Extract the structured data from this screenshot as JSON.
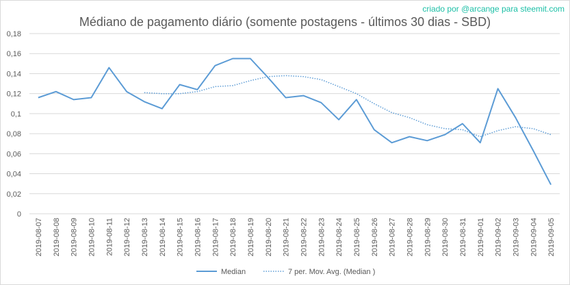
{
  "chart_data": {
    "type": "line",
    "title": "Médiano de pagamento diário (somente postagens - últimos 30 dias - SBD)",
    "credit": "criado por @arcange para steemit.com",
    "xlabel": "",
    "ylabel": "",
    "ylim": [
      0,
      0.18
    ],
    "yticks": [
      "0",
      "0,02",
      "0,04",
      "0,06",
      "0,08",
      "0,1",
      "0,12",
      "0,14",
      "0,16",
      "0,18"
    ],
    "categories": [
      "2019-08-07",
      "2019-08-08",
      "2019-08-09",
      "2019-08-10",
      "2019-08-11",
      "2019-08-12",
      "2019-08-13",
      "2019-08-14",
      "2019-08-15",
      "2019-08-16",
      "2019-08-17",
      "2019-08-18",
      "2019-08-19",
      "2019-08-20",
      "2019-08-21",
      "2019-08-22",
      "2019-08-23",
      "2019-08-24",
      "2019-08-25",
      "2019-08-26",
      "2019-08-27",
      "2019-08-28",
      "2019-08-29",
      "2019-08-30",
      "2019-08-31",
      "2019-09-01",
      "2019-09-02",
      "2019-09-03",
      "2019-09-04",
      "2019-09-05"
    ],
    "series": [
      {
        "name": "Median",
        "style": "solid",
        "color": "#5b9bd5",
        "values": [
          0.116,
          0.122,
          0.114,
          0.116,
          0.146,
          0.122,
          0.112,
          0.105,
          0.129,
          0.124,
          0.148,
          0.155,
          0.155,
          0.136,
          0.116,
          0.118,
          0.111,
          0.094,
          0.114,
          0.084,
          0.071,
          0.077,
          0.073,
          0.079,
          0.09,
          0.071,
          0.125,
          0.096,
          0.063,
          0.029
        ]
      },
      {
        "name": "7 per. Mov. Avg. (Median )",
        "style": "dotted",
        "color": "#5b9bd5",
        "values": [
          null,
          null,
          null,
          null,
          null,
          null,
          0.121,
          0.12,
          0.12,
          0.122,
          0.127,
          0.128,
          0.133,
          0.137,
          0.138,
          0.137,
          0.134,
          0.127,
          0.12,
          0.11,
          0.101,
          0.096,
          0.089,
          0.085,
          0.084,
          0.077,
          0.083,
          0.087,
          0.085,
          0.079
        ]
      }
    ],
    "grid": true,
    "legend": "bottom"
  }
}
